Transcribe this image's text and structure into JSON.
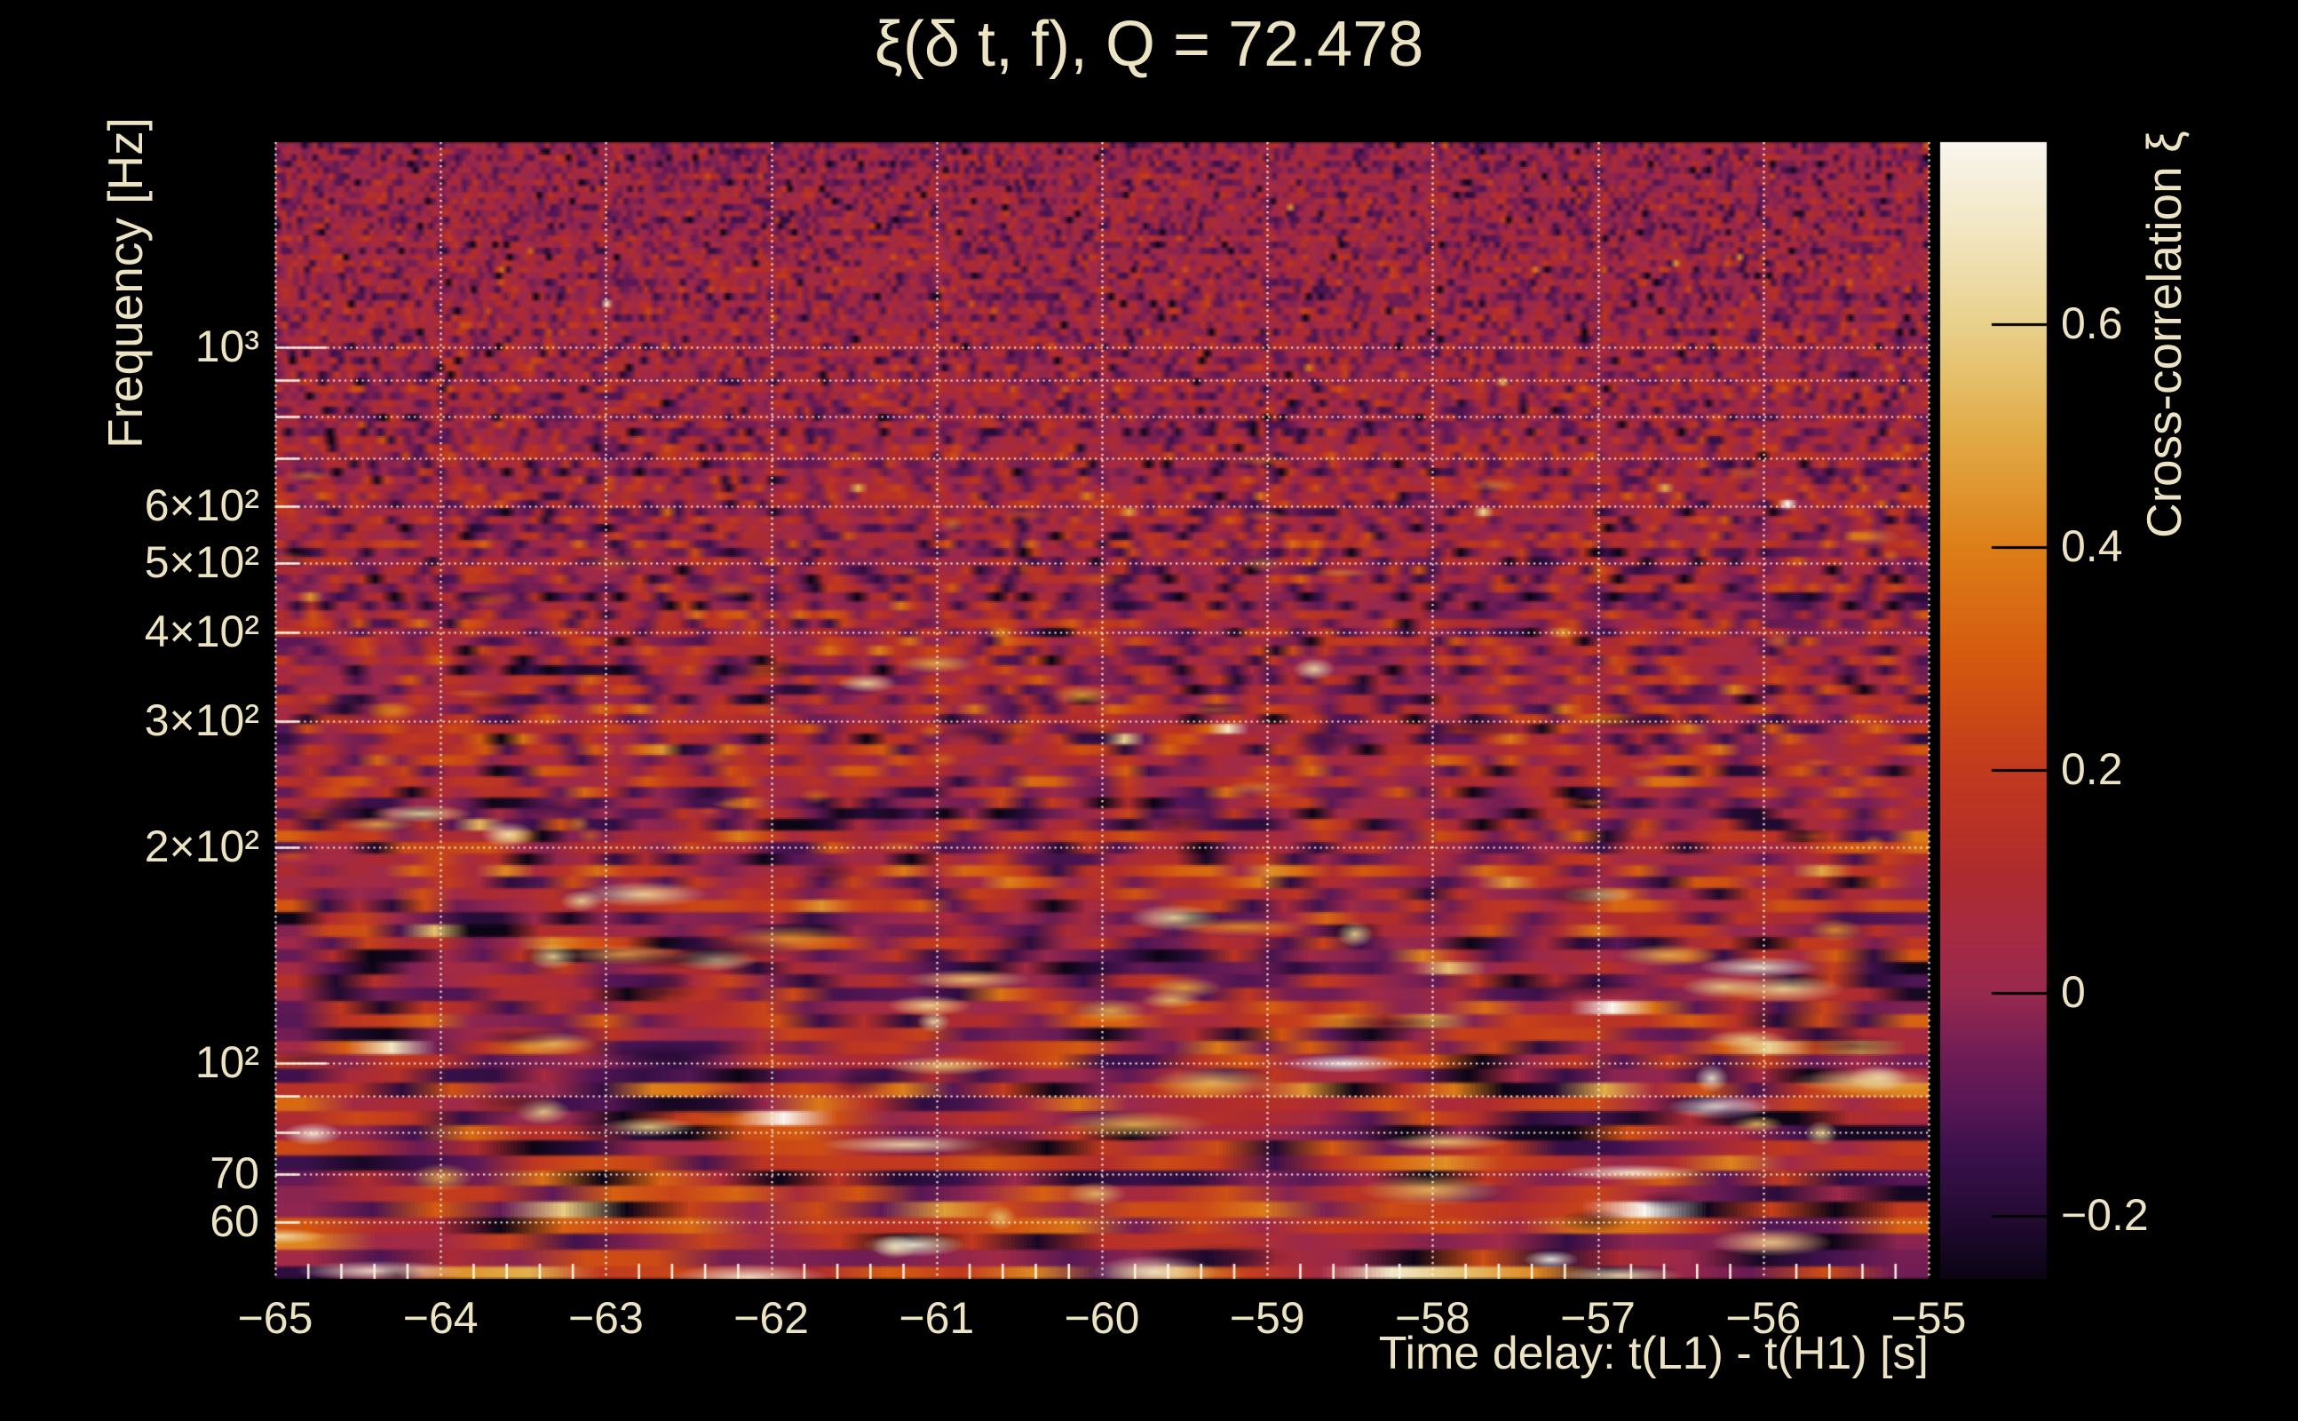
{
  "colors": {
    "background": "#000000",
    "text": "#ece3c3",
    "grid": "#fcf6e3",
    "colorbar_tick": "#000000"
  },
  "chart_data": {
    "type": "heatmap",
    "title": "ξ(δ t, f), Q = 72.478",
    "q_value": 72.478,
    "xlabel": "Time delay: t(L1) - t(H1) [s]",
    "ylabel": "Frequency [Hz]",
    "colorbar_label": "Cross-correlation ξ",
    "x_range": [
      -65,
      -55
    ],
    "x_major_ticks": [
      {
        "value": -65,
        "label": "−65"
      },
      {
        "value": -64,
        "label": "−64"
      },
      {
        "value": -63,
        "label": "−63"
      },
      {
        "value": -62,
        "label": "−62"
      },
      {
        "value": -61,
        "label": "−61"
      },
      {
        "value": -60,
        "label": "−60"
      },
      {
        "value": -59,
        "label": "−59"
      },
      {
        "value": -58,
        "label": "−58"
      },
      {
        "value": -57,
        "label": "−57"
      },
      {
        "value": -56,
        "label": "−56"
      },
      {
        "value": -55,
        "label": "−55"
      }
    ],
    "x_minor_tick_step": 0.2,
    "y_scale": "log",
    "y_range_hz": [
      50,
      1933
    ],
    "y_ticks": [
      {
        "value": 1000,
        "label": "10³"
      },
      {
        "value": 600,
        "label": "6×10²"
      },
      {
        "value": 500,
        "label": "5×10²"
      },
      {
        "value": 400,
        "label": "4×10²"
      },
      {
        "value": 300,
        "label": "3×10²"
      },
      {
        "value": 200,
        "label": "2×10²"
      },
      {
        "value": 100,
        "label": "10²"
      },
      {
        "value": 70,
        "label": "70"
      },
      {
        "value": 60,
        "label": "60"
      }
    ],
    "y_gridlines_hz": [
      60,
      70,
      80,
      90,
      100,
      200,
      300,
      400,
      500,
      600,
      700,
      800,
      900,
      1000
    ],
    "colorbar": {
      "min": -0.2566,
      "max": 0.7636,
      "ticks": [
        {
          "value": 0.6,
          "label": "0.6"
        },
        {
          "value": 0.4,
          "label": "0.4"
        },
        {
          "value": 0.2,
          "label": "0.2"
        },
        {
          "value": 0,
          "label": "0"
        },
        {
          "value": -0.2,
          "label": "−0.2"
        }
      ]
    },
    "colormap": [
      {
        "v": -0.2566,
        "c": "#0a0413"
      },
      {
        "v": -0.2,
        "c": "#240b33"
      },
      {
        "v": -0.15,
        "c": "#38104a"
      },
      {
        "v": -0.1,
        "c": "#571755"
      },
      {
        "v": -0.05,
        "c": "#741e54"
      },
      {
        "v": 0.0,
        "c": "#98294e"
      },
      {
        "v": 0.05,
        "c": "#a62a43"
      },
      {
        "v": 0.1,
        "c": "#ac2b31"
      },
      {
        "v": 0.15,
        "c": "#b93226"
      },
      {
        "v": 0.2,
        "c": "#c23a1e"
      },
      {
        "v": 0.3,
        "c": "#d5590f"
      },
      {
        "v": 0.4,
        "c": "#dd7f19"
      },
      {
        "v": 0.5,
        "c": "#e2ab46"
      },
      {
        "v": 0.6,
        "c": "#e9d18c"
      },
      {
        "v": 0.68,
        "c": "#f2e5c0"
      },
      {
        "v": 0.7636,
        "c": "#f9f6ef"
      }
    ],
    "noise": {
      "seed": 1337,
      "description": "Stochastic cross-correlation noise field: fine vertical grain (ξ≈-0.05…0.15) at high frequency, progressively longer horizontal streaks toward low frequency with sparse bright patches (ξ≈0.5…0.75) and dark patches (ξ≈-0.25), brightest activity below ~200 Hz."
    }
  }
}
